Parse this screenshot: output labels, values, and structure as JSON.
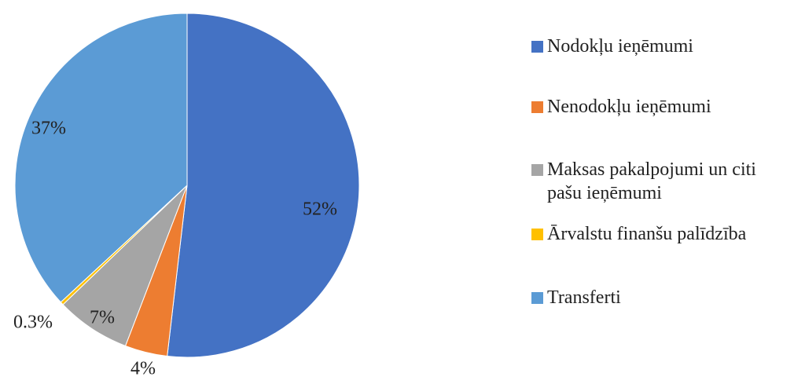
{
  "chart_data": {
    "type": "pie",
    "title": "",
    "categories": [
      "Nodokļu ieņēmumi",
      "Nenodokļu ieņēmumi",
      "Maksas pakalpojumi un citi pašu ieņēmumi",
      "Ārvalstu finanšu palīdzība",
      "Transferti"
    ],
    "values": [
      52,
      4,
      7,
      0.3,
      37
    ],
    "labels": [
      "52%",
      "4%",
      "7%",
      "0.3%",
      "37%"
    ],
    "colors": [
      "#4472C4",
      "#ED7D31",
      "#A5A5A5",
      "#FFC000",
      "#5B9BD5"
    ],
    "legend_placement": "right",
    "start_angle": "12 o'clock",
    "direction": "clockwise"
  },
  "legend": {
    "items": [
      {
        "label": "Nodokļu ieņēmumi",
        "color": "#4472C4"
      },
      {
        "label": "Nenodokļu ieņēmumi",
        "color": "#ED7D31"
      },
      {
        "label": "Maksas pakalpojumi un citi\npašu ieņēmumi",
        "color": "#A5A5A5"
      },
      {
        "label": "Ārvalstu finanšu palīdzība",
        "color": "#FFC000"
      },
      {
        "label": "Transferti",
        "color": "#5B9BD5"
      }
    ]
  }
}
